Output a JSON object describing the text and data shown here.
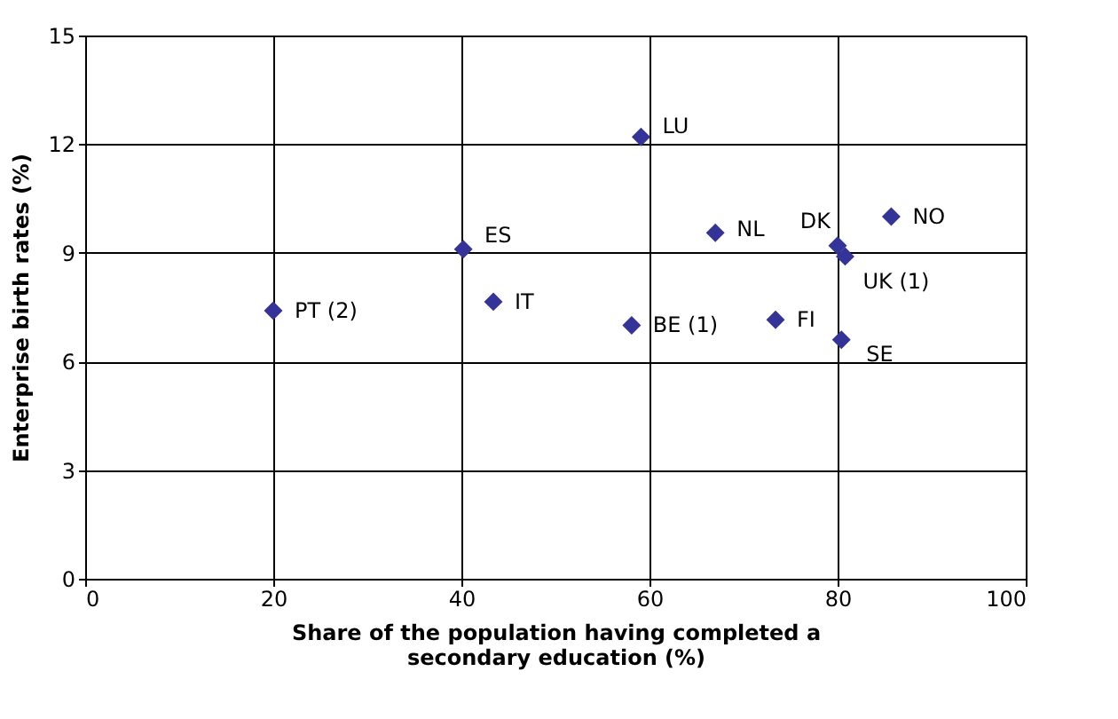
{
  "chart_data": {
    "type": "scatter",
    "xlabel": "Share of the population having completed a\nsecondary education (%)",
    "ylabel": "Enterprise birth rates (%)",
    "x": [
      20,
      40.2,
      43.4,
      59.1,
      67,
      58.1,
      73.4,
      80,
      80.8,
      80.4,
      85.7
    ],
    "values": [
      7.4,
      9.1,
      7.65,
      12.2,
      9.55,
      7.0,
      7.15,
      9.2,
      8.9,
      6.6,
      10.0
    ],
    "color": "#333399",
    "marker": "diamond",
    "xlim": [
      0,
      100
    ],
    "xticks": [
      0,
      20,
      40,
      60,
      80,
      100
    ],
    "ylim": [
      0,
      15
    ],
    "yticks": [
      0,
      3,
      6,
      9,
      12,
      15
    ],
    "grid": true,
    "annotations": [
      {
        "text": "PT (2)",
        "x": 20,
        "y": 7.4
      },
      {
        "text": "ES",
        "x": 40.2,
        "y": 9.1
      },
      {
        "text": "IT",
        "x": 43.4,
        "y": 7.65
      },
      {
        "text": "LU",
        "x": 59.1,
        "y": 12.2
      },
      {
        "text": "NL",
        "x": 67,
        "y": 9.55
      },
      {
        "text": "BE (1)",
        "x": 58.1,
        "y": 7.0
      },
      {
        "text": "FI",
        "x": 73.4,
        "y": 7.15
      },
      {
        "text": "DK",
        "x": 80,
        "y": 9.2
      },
      {
        "text": "UK (1)",
        "x": 80.8,
        "y": 8.9
      },
      {
        "text": "SE",
        "x": 80.4,
        "y": 6.6
      },
      {
        "text": "NO",
        "x": 85.7,
        "y": 10.0
      }
    ]
  }
}
